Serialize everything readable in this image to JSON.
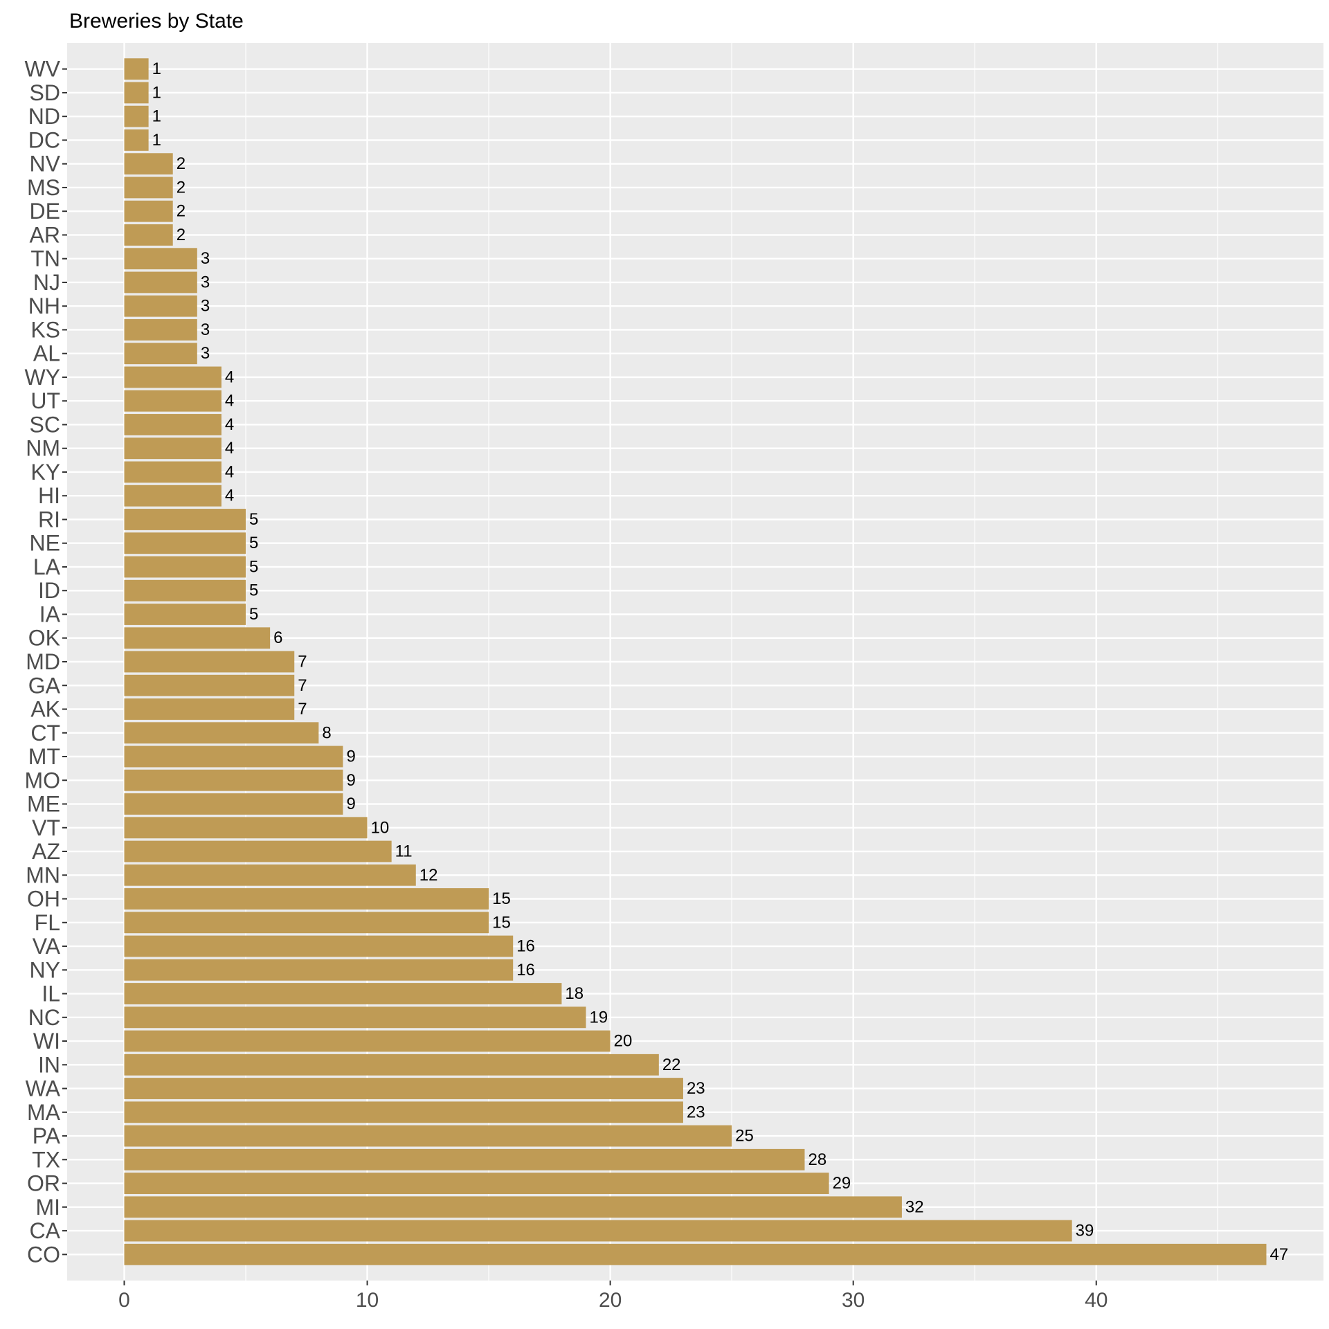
{
  "chart_data": {
    "type": "bar",
    "orientation": "horizontal",
    "title": "Breweries by State",
    "xlabel": "",
    "ylabel": "",
    "categories": [
      "CO",
      "CA",
      "MI",
      "OR",
      "TX",
      "PA",
      "MA",
      "WA",
      "IN",
      "WI",
      "NC",
      "IL",
      "NY",
      "VA",
      "FL",
      "OH",
      "MN",
      "AZ",
      "VT",
      "ME",
      "MO",
      "MT",
      "CT",
      "AK",
      "GA",
      "MD",
      "OK",
      "IA",
      "ID",
      "LA",
      "NE",
      "RI",
      "HI",
      "KY",
      "NM",
      "SC",
      "UT",
      "WY",
      "AL",
      "KS",
      "NH",
      "NJ",
      "TN",
      "AR",
      "DE",
      "MS",
      "NV",
      "DC",
      "ND",
      "SD",
      "WV"
    ],
    "values": [
      47,
      39,
      32,
      29,
      28,
      25,
      23,
      23,
      22,
      20,
      19,
      18,
      16,
      16,
      15,
      15,
      12,
      11,
      10,
      9,
      9,
      9,
      8,
      7,
      7,
      7,
      6,
      5,
      5,
      5,
      5,
      5,
      4,
      4,
      4,
      4,
      4,
      4,
      3,
      3,
      3,
      3,
      3,
      2,
      2,
      2,
      2,
      1,
      1,
      1,
      1
    ],
    "xlim": [
      -2.35,
      49.35
    ],
    "x_ticks": [
      0,
      10,
      20,
      30,
      40
    ],
    "grid": true,
    "colors": {
      "bar": "#BF9B55",
      "panel": "#EBEBEB",
      "grid": "#FFFFFF"
    }
  }
}
